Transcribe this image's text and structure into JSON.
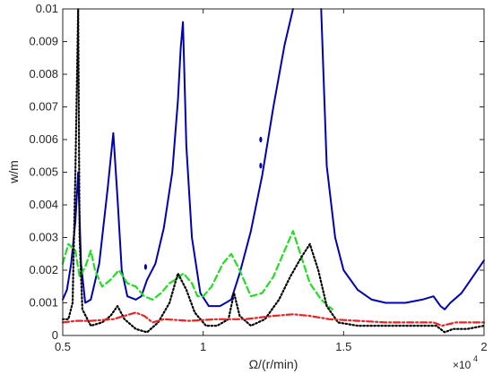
{
  "chart_data": {
    "type": "line",
    "title": "",
    "xlabel": "Ω/(r/min)",
    "ylabel": "w/m",
    "xlim": [
      5000,
      20000
    ],
    "ylim": [
      0,
      0.01
    ],
    "x_tick_values": [
      5000,
      10000,
      15000,
      20000
    ],
    "x_tick_labels": [
      "0.5",
      "1",
      "1.5",
      "2"
    ],
    "x_exponent_label": "×10",
    "x_exponent_power": "4",
    "y_tick_values": [
      0,
      0.001,
      0.002,
      0.003,
      0.004,
      0.005,
      0.006,
      0.007,
      0.008,
      0.009,
      0.01
    ],
    "y_tick_labels": [
      "0",
      "0.001",
      "0.002",
      "0.003",
      "0.004",
      "0.005",
      "0.006",
      "0.007",
      "0.008",
      "0.009",
      "0.01"
    ],
    "grid": false,
    "legend": null,
    "series": [
      {
        "color": "#0000b4",
        "style": "solid",
        "points": [
          [
            5000,
            0.0011
          ],
          [
            5150,
            0.0014
          ],
          [
            5300,
            0.0022
          ],
          [
            5450,
            0.0035
          ],
          [
            5550,
            0.005
          ],
          [
            5650,
            0.0022
          ],
          [
            5800,
            0.001
          ],
          [
            6000,
            0.0011
          ],
          [
            6300,
            0.0022
          ],
          [
            6600,
            0.0045
          ],
          [
            6800,
            0.0062
          ],
          [
            6950,
            0.0042
          ],
          [
            7100,
            0.002
          ],
          [
            7300,
            0.0012
          ],
          [
            7600,
            0.0011
          ],
          [
            7800,
            0.0012
          ],
          [
            8000,
            0.0017
          ],
          [
            8300,
            0.0022
          ],
          [
            8600,
            0.0033
          ],
          [
            8900,
            0.005
          ],
          [
            9100,
            0.0072
          ],
          [
            9200,
            0.0088
          ],
          [
            9280,
            0.0096
          ],
          [
            9300,
            0.009
          ],
          [
            9400,
            0.0058
          ],
          [
            9600,
            0.003
          ],
          [
            9900,
            0.0013
          ],
          [
            10200,
            0.0009
          ],
          [
            10600,
            0.0009
          ],
          [
            11000,
            0.0011
          ],
          [
            11300,
            0.0019
          ],
          [
            11700,
            0.0032
          ],
          [
            12100,
            0.0049
          ],
          [
            12500,
            0.007
          ],
          [
            12900,
            0.0089
          ],
          [
            13200,
            0.01
          ]
        ],
        "points_b": [
          [
            14200,
            0.01
          ],
          [
            14400,
            0.0052
          ],
          [
            14700,
            0.003
          ],
          [
            15000,
            0.002
          ],
          [
            15500,
            0.0014
          ],
          [
            16000,
            0.0011
          ],
          [
            16500,
            0.001
          ],
          [
            17200,
            0.001
          ],
          [
            17800,
            0.0011
          ],
          [
            18200,
            0.0012
          ],
          [
            18450,
            0.0009
          ],
          [
            18600,
            0.0008
          ],
          [
            18800,
            0.001
          ],
          [
            19200,
            0.0013
          ],
          [
            19600,
            0.0018
          ],
          [
            20000,
            0.0023
          ]
        ],
        "isolated_points": [
          [
            7950,
            0.0021
          ],
          [
            12050,
            0.006
          ],
          [
            12050,
            0.0052
          ]
        ]
      },
      {
        "color": "#22dd22",
        "style": "dashed",
        "points": [
          [
            5000,
            0.0022
          ],
          [
            5200,
            0.0028
          ],
          [
            5450,
            0.0026
          ],
          [
            5600,
            0.0018
          ],
          [
            5800,
            0.0021
          ],
          [
            6000,
            0.0026
          ],
          [
            6150,
            0.002
          ],
          [
            6400,
            0.0015
          ],
          [
            6700,
            0.0017
          ],
          [
            7000,
            0.002
          ],
          [
            7300,
            0.0016
          ],
          [
            7600,
            0.0015
          ],
          [
            7900,
            0.0012
          ],
          [
            8200,
            0.0011
          ],
          [
            8500,
            0.0013
          ],
          [
            8800,
            0.0016
          ],
          [
            9000,
            0.0017
          ],
          [
            9300,
            0.0019
          ],
          [
            9600,
            0.0016
          ],
          [
            9800,
            0.0012
          ],
          [
            10000,
            0.0012
          ],
          [
            10300,
            0.0015
          ],
          [
            10700,
            0.0022
          ],
          [
            11000,
            0.0025
          ],
          [
            11300,
            0.002
          ],
          [
            11700,
            0.0012
          ],
          [
            12100,
            0.0013
          ],
          [
            12500,
            0.0018
          ],
          [
            12900,
            0.0026
          ],
          [
            13200,
            0.0032
          ],
          [
            13500,
            0.0024
          ],
          [
            13800,
            0.0016
          ],
          [
            14200,
            0.0011
          ],
          [
            14600,
            0.0008
          ]
        ]
      },
      {
        "color": "#000000",
        "style": "dotted",
        "points": [
          [
            5000,
            0.0005
          ],
          [
            5200,
            0.0005
          ],
          [
            5350,
            0.001
          ],
          [
            5450,
            0.005
          ],
          [
            5550,
            0.01
          ],
          [
            5600,
            0.003
          ],
          [
            5700,
            0.0008
          ],
          [
            6000,
            0.0003
          ],
          [
            6400,
            0.0004
          ],
          [
            6700,
            0.0006
          ],
          [
            6950,
            0.0009
          ],
          [
            7200,
            0.0005
          ],
          [
            7600,
            0.0002
          ],
          [
            8000,
            0.0001
          ],
          [
            8400,
            0.0004
          ],
          [
            8800,
            0.001
          ],
          [
            9100,
            0.0019
          ],
          [
            9400,
            0.0014
          ],
          [
            9700,
            0.0007
          ],
          [
            10100,
            0.0003
          ],
          [
            10500,
            0.0003
          ],
          [
            10900,
            0.0005
          ],
          [
            11100,
            0.0013
          ],
          [
            11300,
            0.0006
          ],
          [
            11700,
            0.0003
          ],
          [
            12200,
            0.0005
          ],
          [
            12700,
            0.0011
          ],
          [
            13100,
            0.0018
          ],
          [
            13500,
            0.0024
          ],
          [
            13800,
            0.0028
          ],
          [
            14100,
            0.002
          ],
          [
            14400,
            0.0009
          ],
          [
            14800,
            0.0004
          ],
          [
            15500,
            0.0003
          ],
          [
            16500,
            0.0003
          ],
          [
            17500,
            0.0003
          ],
          [
            18300,
            0.0003
          ],
          [
            18600,
            0.0001
          ],
          [
            18900,
            0.0002
          ],
          [
            19400,
            0.0002
          ],
          [
            20000,
            0.0003
          ]
        ]
      },
      {
        "color": "#ee2222",
        "style": "dashdot",
        "points": [
          [
            5000,
            0.0004
          ],
          [
            5500,
            0.00045
          ],
          [
            6000,
            0.00045
          ],
          [
            6800,
            0.0005
          ],
          [
            7200,
            0.0006
          ],
          [
            7600,
            0.0007
          ],
          [
            7900,
            0.0006
          ],
          [
            8200,
            0.0004
          ],
          [
            8600,
            0.0005
          ],
          [
            9500,
            0.00045
          ],
          [
            10500,
            0.0005
          ],
          [
            11500,
            0.0005
          ],
          [
            12500,
            0.0006
          ],
          [
            13200,
            0.00065
          ],
          [
            13800,
            0.0006
          ],
          [
            14500,
            0.0005
          ],
          [
            15500,
            0.00045
          ],
          [
            16500,
            0.0004
          ],
          [
            17500,
            0.0004
          ],
          [
            18200,
            0.0004
          ],
          [
            18500,
            0.0003
          ],
          [
            19000,
            0.0004
          ],
          [
            20000,
            0.0004
          ]
        ]
      }
    ]
  }
}
